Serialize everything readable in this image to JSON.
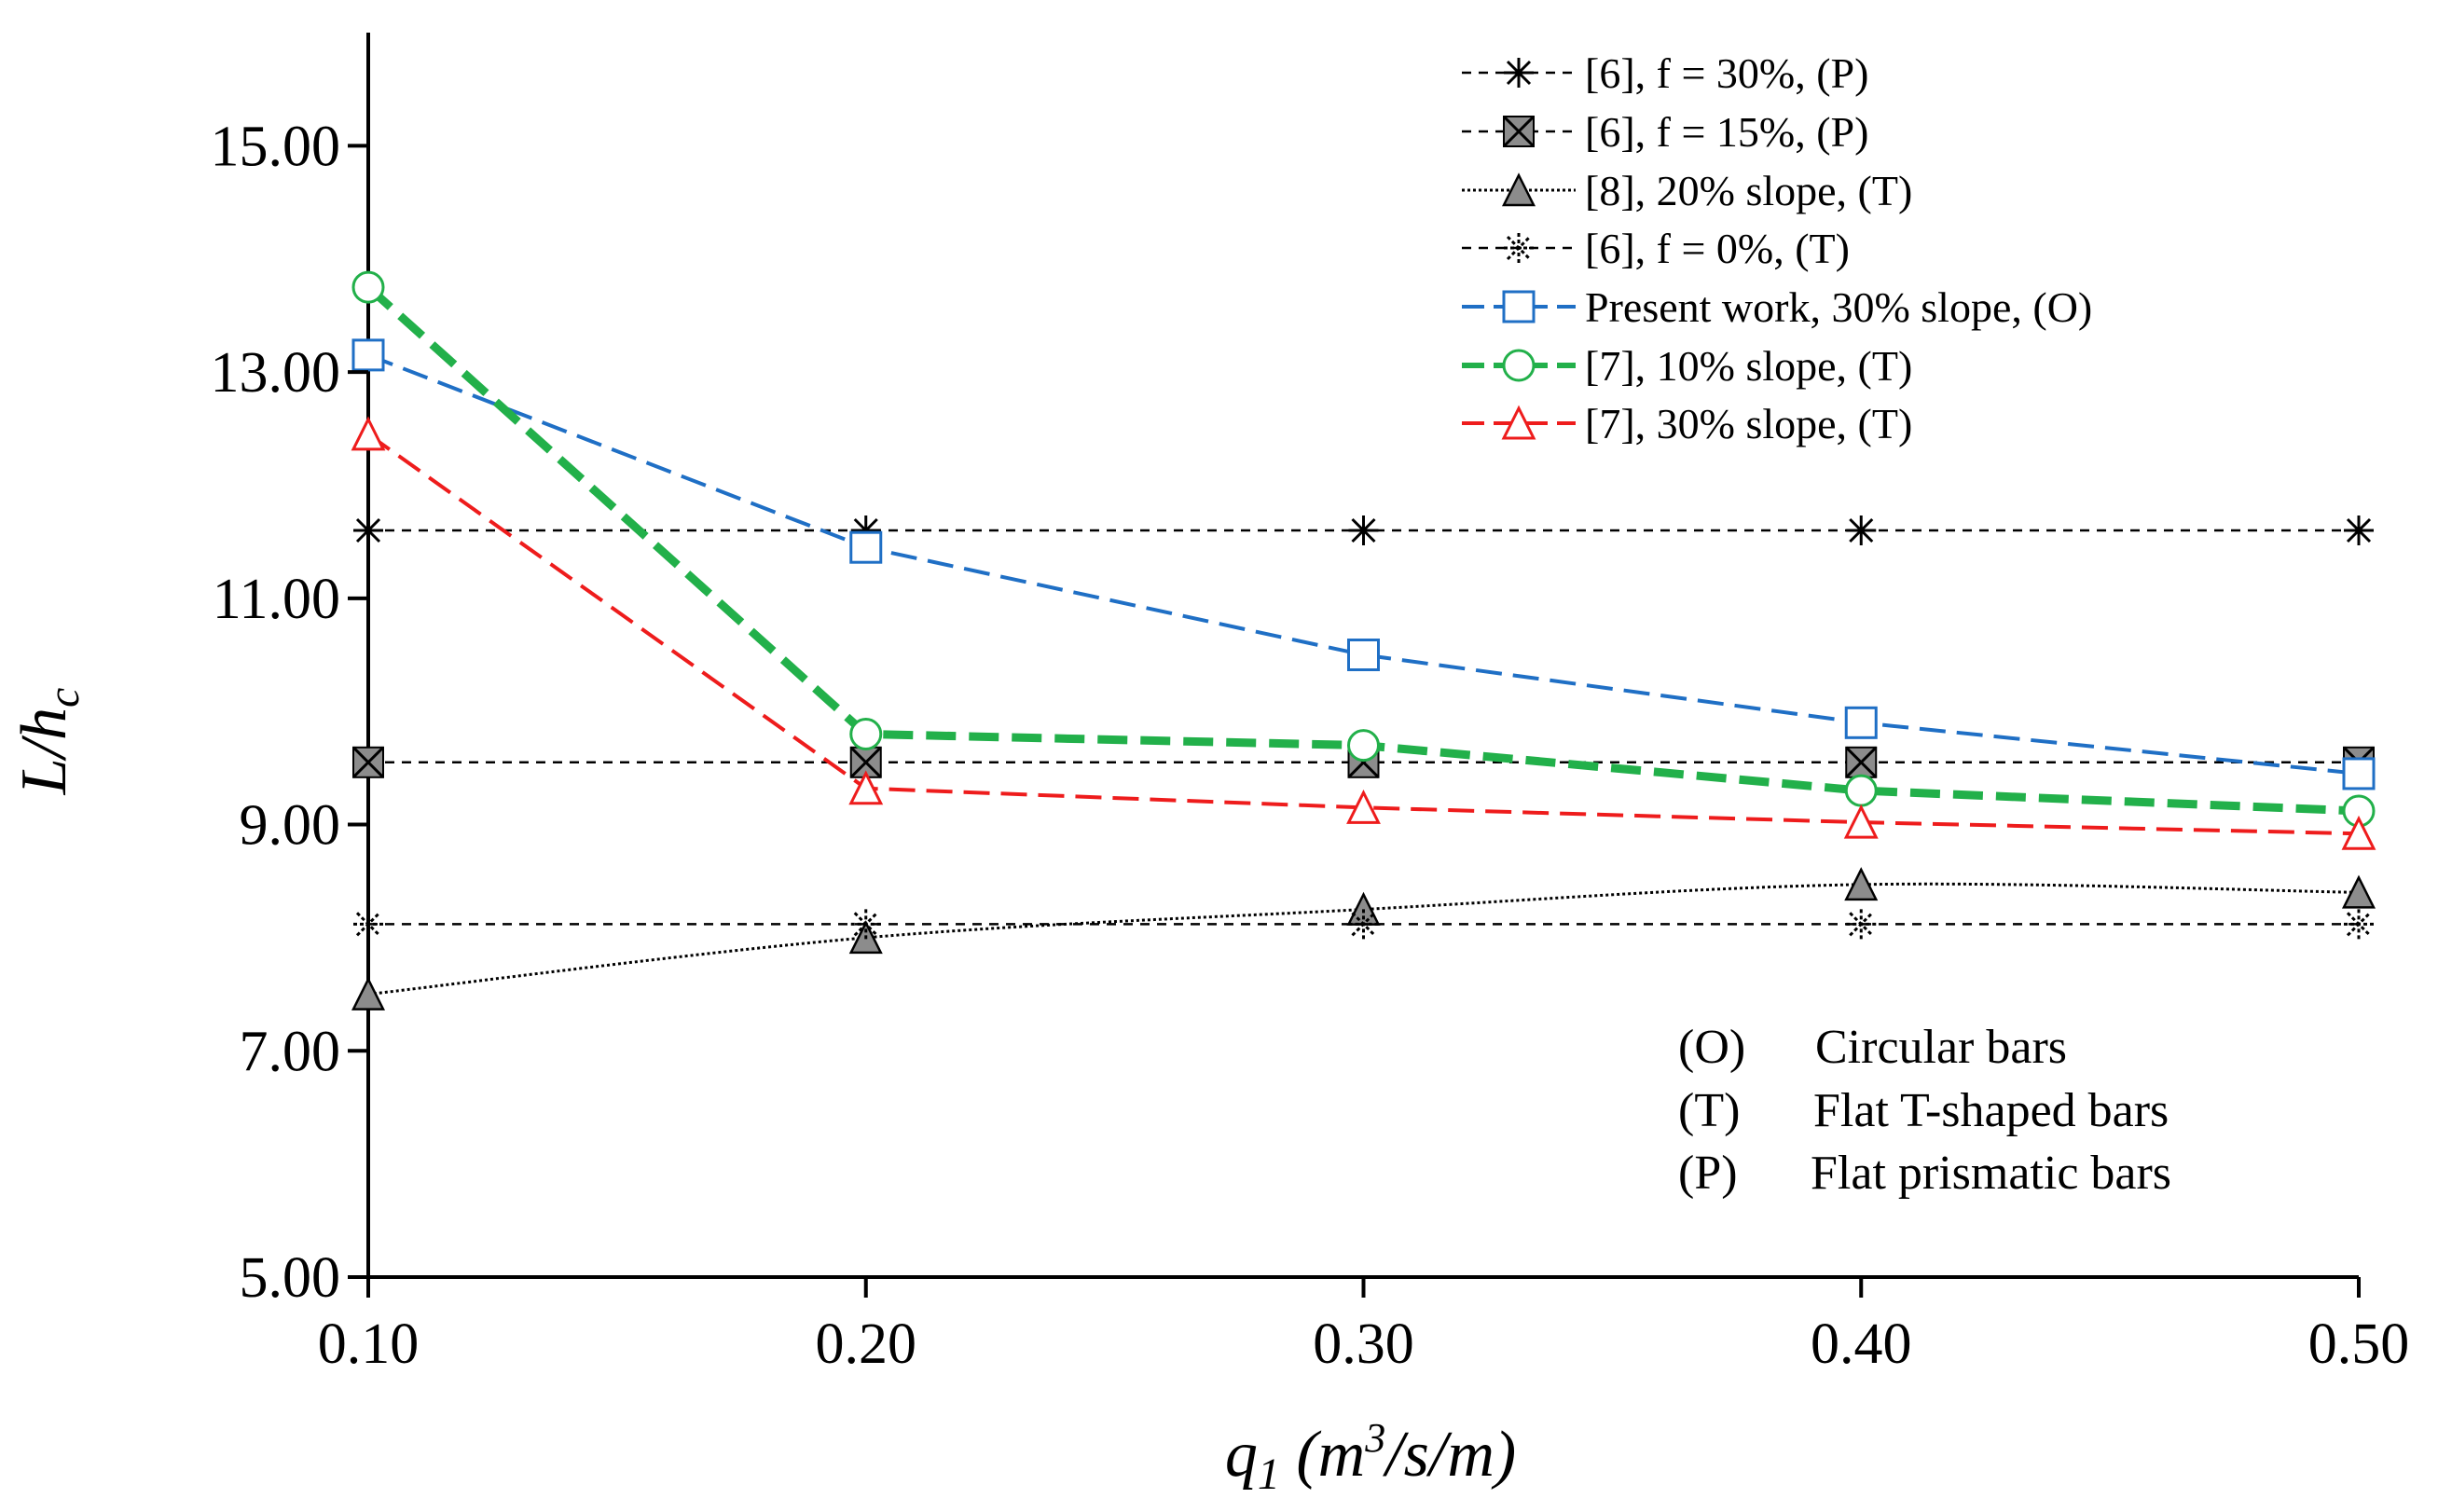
{
  "chart_data": {
    "type": "line",
    "title": "",
    "x": [
      0.1,
      0.2,
      0.3,
      0.4,
      0.5
    ],
    "xlim": [
      0.1,
      0.5
    ],
    "ylim": [
      5.0,
      16.0
    ],
    "x_ticks": [
      0.1,
      0.2,
      0.3,
      0.4,
      0.5
    ],
    "x_tick_labels": [
      "0.10",
      "0.20",
      "0.30",
      "0.40",
      "0.50"
    ],
    "y_ticks": [
      5,
      7,
      9,
      11,
      13,
      15
    ],
    "y_tick_labels": [
      "5.00",
      "7.00",
      "9.00",
      "11.00",
      "13.00",
      "15.00"
    ],
    "xlabel": {
      "base": "q",
      "sub": "1",
      "unit_open": " (m",
      "sup": "3",
      "unit_close": "/s/m)"
    },
    "ylabel": {
      "base": "L/h",
      "sub": "c"
    },
    "grid": false,
    "legend_position": "top-right",
    "series": [
      {
        "name": "[6], f = 30%, (P)",
        "marker": "asterisk",
        "color": "#000000",
        "dash": "short",
        "values": [
          11.6,
          11.6,
          11.6,
          11.6,
          11.6
        ]
      },
      {
        "name": "[6], f = 15%, (P)",
        "marker": "x-square",
        "color": "#000000",
        "dash": "short",
        "values": [
          9.55,
          9.55,
          9.55,
          9.55,
          9.55
        ]
      },
      {
        "name": "[8], 20% slope,  (T)",
        "marker": "triangle-filled",
        "color": "#000000",
        "dash": "dotted",
        "values": [
          7.5,
          8.0,
          8.25,
          8.47,
          8.4
        ]
      },
      {
        "name": "[6], f = 0%, (T)",
        "marker": "asterisk-dashed",
        "color": "#000000",
        "dash": "short",
        "values": [
          8.12,
          8.12,
          8.12,
          8.12,
          8.12
        ]
      },
      {
        "name": "Present work, 30% slope, (O)",
        "marker": "square-open",
        "color": "#1f6fc5",
        "dash": "long",
        "values": [
          13.15,
          11.45,
          10.5,
          9.9,
          9.45
        ]
      },
      {
        "name": "[7], 10% slope, (T)",
        "marker": "circle-open",
        "color": "#22b04a",
        "dash": "thick",
        "values": [
          13.75,
          9.8,
          9.7,
          9.3,
          9.12
        ]
      },
      {
        "name": "[7], 30% slope, (T)",
        "marker": "triangle-open",
        "color": "#ee1c1c",
        "dash": "long",
        "values": [
          12.45,
          9.32,
          9.15,
          9.02,
          8.92
        ]
      }
    ],
    "annotations": [
      {
        "code": "(O)",
        "text": "Circular bars"
      },
      {
        "code": "(T)",
        "text": "Flat T-shaped bars"
      },
      {
        "code": "(P)",
        "text": "Flat prismatic bars"
      }
    ]
  }
}
